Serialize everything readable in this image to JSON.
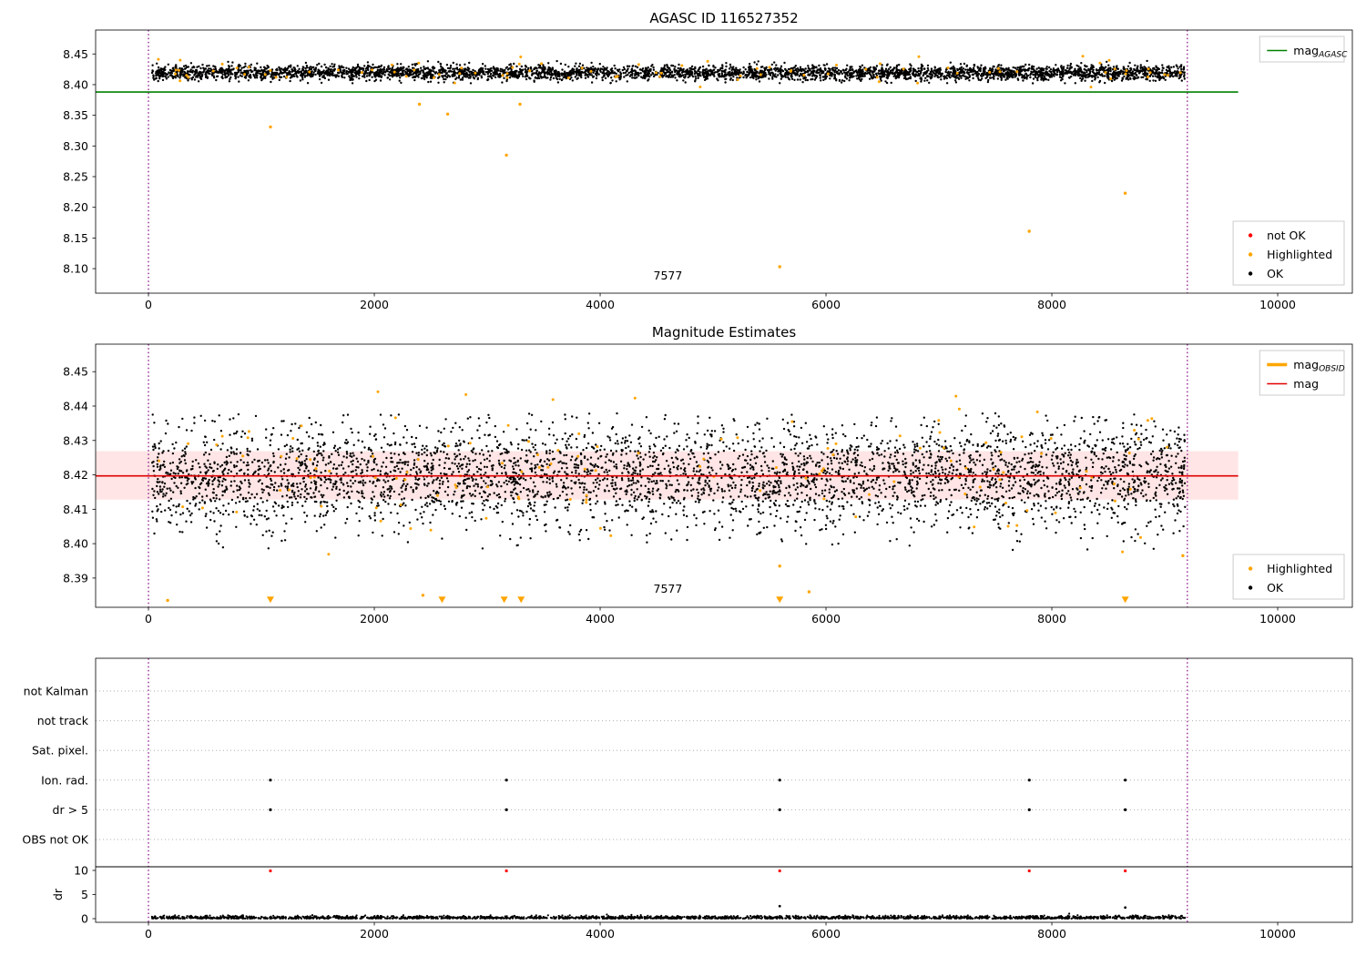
{
  "chart_data": [
    {
      "id": "agasc-mag",
      "type": "scatter",
      "title": "AGASC ID 116527352",
      "xlim": [
        -468,
        10661
      ],
      "ylim": [
        8.06,
        8.489
      ],
      "xticks": [
        0,
        2000,
        4000,
        6000,
        8000,
        10000
      ],
      "xtick_labels": [
        "0",
        "2000",
        "4000",
        "6000",
        "8000",
        "10000"
      ],
      "yticks": [
        8.1,
        8.15,
        8.2,
        8.25,
        8.3,
        8.35,
        8.4,
        8.45
      ],
      "ytick_labels": [
        "8.10",
        "8.15",
        "8.20",
        "8.25",
        "8.30",
        "8.35",
        "8.40",
        "8.45"
      ],
      "hline": {
        "y": 8.388,
        "x0": -468,
        "x1": 9650,
        "color": "#008000",
        "width": 1.6
      },
      "vlines": {
        "x": [
          0,
          9200
        ],
        "color": "#800080"
      },
      "clusters": [
        {
          "name": "ok",
          "n": 4200,
          "x_range": [
            30,
            9180
          ],
          "y_mean": 8.4195,
          "y_sigma": 0.006,
          "y_clip": [
            8.402,
            8.4465
          ],
          "color": "#000000",
          "r": 1.2
        },
        {
          "name": "highlighted",
          "n": 90,
          "x_range": [
            30,
            9180
          ],
          "y_mean": 8.421,
          "y_sigma": 0.0095,
          "y_clip": [
            8.374,
            8.449
          ],
          "color": "#ffa500",
          "r": 1.5
        }
      ],
      "outlier_points": {
        "color": "#ffa500",
        "r": 1.7,
        "xy": [
          [
            1080,
            8.331
          ],
          [
            2400,
            8.368
          ],
          [
            2650,
            8.352
          ],
          [
            3170,
            8.285
          ],
          [
            3290,
            8.368
          ],
          [
            5590,
            8.103
          ],
          [
            7800,
            8.161
          ],
          [
            8650,
            8.223
          ]
        ]
      },
      "annotation": {
        "text": "7577",
        "x": 4600,
        "y": 8.082
      },
      "legends": [
        {
          "position": "top-right",
          "entries": [
            {
              "type": "line",
              "color": "#008000",
              "lw": 1.6,
              "label": "mag",
              "sub": "AGASC"
            }
          ]
        },
        {
          "position": "bottom-right",
          "entries": [
            {
              "type": "marker",
              "color": "#ff0000",
              "label": "not OK"
            },
            {
              "type": "marker",
              "color": "#ffa500",
              "label": "Highlighted"
            },
            {
              "type": "marker",
              "color": "#000000",
              "label": "OK"
            }
          ]
        }
      ]
    },
    {
      "id": "magnitude-estimates",
      "type": "scatter",
      "title": "Magnitude Estimates",
      "xlim": [
        -468,
        10661
      ],
      "ylim": [
        8.3815,
        8.458
      ],
      "xticks": [
        0,
        2000,
        4000,
        6000,
        8000,
        10000
      ],
      "xtick_labels": [
        "0",
        "2000",
        "4000",
        "6000",
        "8000",
        "10000"
      ],
      "yticks": [
        8.39,
        8.4,
        8.41,
        8.42,
        8.43,
        8.44,
        8.45
      ],
      "ytick_labels": [
        "8.39",
        "8.40",
        "8.41",
        "8.42",
        "8.43",
        "8.44",
        "8.45"
      ],
      "band": {
        "y0": 8.4128,
        "y1": 8.4269,
        "x0": -468,
        "x1": 9650,
        "color": "#ff0000",
        "opacity": 0.1
      },
      "hline": {
        "y": 8.4197,
        "x0": -468,
        "x1": 9650,
        "color": "#e00000",
        "width": 1.6
      },
      "vlines": {
        "x": [
          0,
          9200
        ],
        "color": "#800080"
      },
      "clusters": [
        {
          "name": "ok",
          "n": 4200,
          "x_range": [
            30,
            9180
          ],
          "y_mean": 8.4196,
          "y_sigma": 0.0076,
          "y_clip": [
            8.398,
            8.438
          ],
          "color": "#000000",
          "r": 1.2
        },
        {
          "name": "highlighted",
          "n": 130,
          "x_range": [
            30,
            9180
          ],
          "y_mean": 8.421,
          "y_sigma": 0.011,
          "y_clip": [
            8.392,
            8.4445
          ],
          "color": "#ffa500",
          "r": 1.5
        }
      ],
      "outlier_points": {
        "color": "#ffa500",
        "r": 1.7,
        "xy": [
          [
            170,
            8.3835
          ],
          [
            2430,
            8.385
          ],
          [
            5850,
            8.386
          ],
          [
            5590,
            8.3935
          ],
          [
            9160,
            8.3965
          ]
        ]
      },
      "triangle_markers": {
        "color": "#ffa500",
        "y": 8.3838,
        "x": [
          1080,
          2600,
          3150,
          3300,
          5590,
          8650
        ]
      },
      "annotation": {
        "text": "7577",
        "x": 4600,
        "y": 8.3858
      },
      "legends": [
        {
          "position": "top-right",
          "entries": [
            {
              "type": "line",
              "color": "#ffa500",
              "lw": 3.5,
              "label": "mag",
              "sub": "OBSID"
            },
            {
              "type": "line",
              "color": "#e00000",
              "lw": 1.6,
              "label": "mag"
            }
          ]
        },
        {
          "position": "bottom-right",
          "entries": [
            {
              "type": "marker",
              "color": "#ffa500",
              "label": "Highlighted"
            },
            {
              "type": "marker",
              "color": "#000000",
              "label": "OK"
            }
          ]
        }
      ]
    },
    {
      "id": "flags",
      "type": "flags",
      "xlim": [
        -468,
        10661
      ],
      "xticks": [
        0,
        2000,
        4000,
        6000,
        8000,
        10000
      ],
      "xtick_labels": [
        "0",
        "2000",
        "4000",
        "6000",
        "8000",
        "10000"
      ],
      "categories": [
        "not Kalman",
        "not track",
        "Sat. pixel.",
        "Ion. rad.",
        "dr > 5",
        "OBS not OK"
      ],
      "flag_rows": [
        3,
        4
      ],
      "flag_x": [
        1080,
        3170,
        5590,
        7800,
        8650
      ],
      "flag_color": "#000000",
      "dr_axis": {
        "label": "dr",
        "ticks": [
          0,
          5,
          10
        ],
        "tick_labels": [
          "0",
          "5",
          "10"
        ],
        "cap": 10
      },
      "dr_capped_points": {
        "color": "#ff0000",
        "x": [
          1080,
          3170,
          5590,
          7800,
          8650
        ]
      },
      "dr_cluster": {
        "n": 2200,
        "x_range": [
          30,
          9180
        ],
        "mean": 0.18,
        "sigma": 0.22,
        "clip": [
          0.02,
          1.5
        ],
        "color": "#000000",
        "r": 1.1
      },
      "dr_spikes": [
        [
          5590,
          2.6
        ],
        [
          8650,
          2.3
        ]
      ],
      "cap_line": {
        "color": "#000000"
      },
      "vlines": {
        "x": [
          0,
          9200
        ],
        "color": "#800080"
      },
      "grid_color": "#b0b0b0"
    }
  ]
}
